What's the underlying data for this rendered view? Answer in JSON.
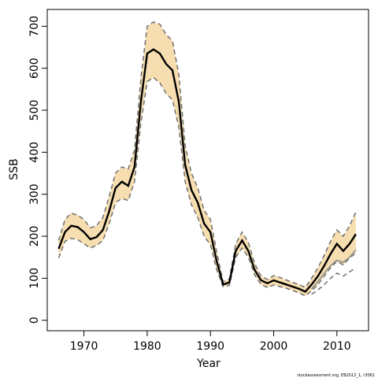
{
  "chart_data": {
    "type": "line",
    "xlabel": "Year",
    "ylabel": "SSB",
    "xlim": [
      1964.2,
      2015.0
    ],
    "ylim": [
      -25,
      740
    ],
    "xticks": [
      1970,
      1980,
      1990,
      2000,
      2010
    ],
    "yticks": [
      0,
      100,
      200,
      300,
      400,
      500,
      600,
      700
    ],
    "grid": false,
    "legend": "none",
    "colors": {
      "band": "#f6deb1",
      "main": "#000000",
      "bounds": "#707070",
      "gray_line": "#8c8c8c"
    },
    "x": [
      1966,
      1967,
      1968,
      1969,
      1970,
      1971,
      1972,
      1973,
      1974,
      1975,
      1976,
      1977,
      1978,
      1979,
      1980,
      1981,
      1982,
      1983,
      1984,
      1985,
      1986,
      1987,
      1988,
      1989,
      1990,
      1991,
      1992,
      1993,
      1994,
      1995,
      1996,
      1997,
      1998,
      1999,
      2000,
      2001,
      2002,
      2003,
      2004,
      2005,
      2006,
      2007,
      2008,
      2009,
      2010,
      2011,
      2012,
      2013
    ],
    "series": [
      {
        "role": "estimate",
        "values": [
          170,
          210,
          225,
          222,
          210,
          193,
          198,
          215,
          260,
          315,
          330,
          320,
          365,
          520,
          635,
          645,
          635,
          610,
          595,
          520,
          370,
          310,
          280,
          230,
          210,
          140,
          85,
          90,
          165,
          190,
          165,
          120,
          95,
          88,
          95,
          90,
          85,
          80,
          75,
          68,
          85,
          105,
          130,
          158,
          182,
          165,
          182,
          205
        ]
      },
      {
        "role": "lower",
        "values": [
          148,
          188,
          195,
          192,
          182,
          172,
          178,
          190,
          230,
          280,
          290,
          285,
          330,
          470,
          568,
          578,
          565,
          540,
          525,
          460,
          330,
          275,
          245,
          200,
          180,
          120,
          80,
          83,
          150,
          172,
          150,
          108,
          85,
          78,
          84,
          80,
          76,
          71,
          65,
          58,
          70,
          85,
          105,
          125,
          140,
          132,
          148,
          160
        ]
      },
      {
        "role": "upper",
        "values": [
          190,
          240,
          255,
          250,
          240,
          220,
          225,
          245,
          295,
          350,
          365,
          360,
          405,
          575,
          700,
          710,
          705,
          680,
          665,
          585,
          415,
          350,
          315,
          262,
          240,
          162,
          92,
          98,
          182,
          210,
          185,
          135,
          105,
          97,
          106,
          102,
          96,
          90,
          85,
          78,
          100,
          125,
          155,
          188,
          215,
          200,
          225,
          258
        ]
      },
      {
        "role": "gray",
        "values": [
          null,
          null,
          null,
          null,
          null,
          null,
          null,
          null,
          null,
          null,
          null,
          null,
          null,
          null,
          null,
          null,
          null,
          null,
          null,
          null,
          null,
          null,
          null,
          null,
          null,
          null,
          null,
          null,
          null,
          null,
          null,
          null,
          null,
          null,
          null,
          null,
          null,
          null,
          null,
          null,
          75,
          92,
          112,
          130,
          143,
          138,
          150,
          168
        ]
      },
      {
        "role": "gray-lower",
        "values": [
          null,
          null,
          null,
          null,
          null,
          null,
          null,
          null,
          null,
          null,
          null,
          null,
          null,
          null,
          null,
          null,
          null,
          null,
          null,
          null,
          null,
          null,
          null,
          null,
          null,
          null,
          null,
          null,
          null,
          null,
          null,
          null,
          null,
          null,
          null,
          null,
          null,
          null,
          null,
          null,
          62,
          72,
          85,
          100,
          112,
          105,
          115,
          125
        ]
      }
    ],
    "credit": "stockassessment.org, EB2013_1, r3061"
  }
}
